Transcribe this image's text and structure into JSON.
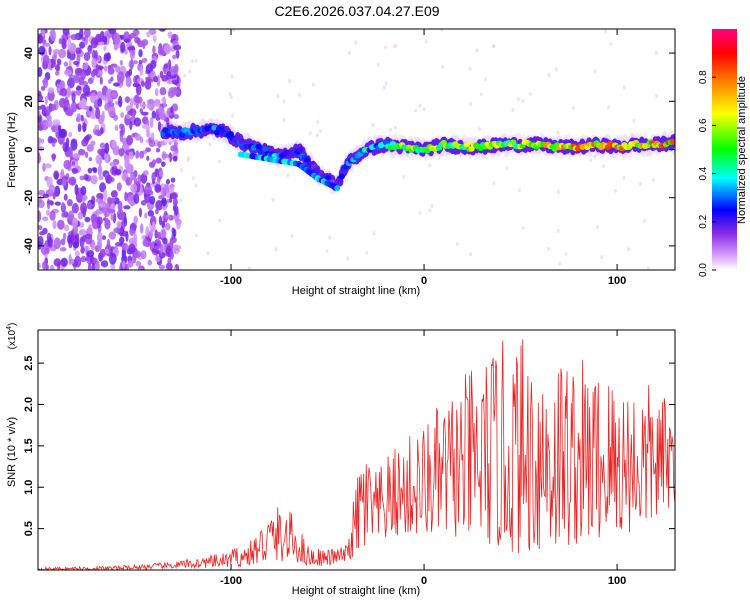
{
  "title": "C2E6.2026.037.04.27.E09",
  "chart_data": [
    {
      "type": "heatmap",
      "title": "C2E6.2026.037.04.27.E09",
      "xlabel": "Height of straight line (km)",
      "ylabel": "Frequency (Hz)",
      "xlim": [
        -200,
        130
      ],
      "ylim": [
        -50,
        50
      ],
      "xticks": [
        -100,
        0,
        100
      ],
      "yticks": [
        -40,
        -20,
        0,
        20,
        40
      ],
      "colorbar": {
        "label": "Normalized spectral amplitude",
        "range": [
          0,
          1
        ],
        "ticks": [
          0.0,
          0.2,
          0.4,
          0.6,
          0.8
        ],
        "colors": [
          "#ffffff",
          "#8a2be2",
          "#0000ff",
          "#00ffff",
          "#00ff00",
          "#ffff00",
          "#ff8000",
          "#ff0000",
          "#ff0080"
        ]
      },
      "noise_region_x": [
        -200,
        -135
      ],
      "ridge": [
        {
          "x": -135,
          "y": 7,
          "amp": 0.3
        },
        {
          "x": -125,
          "y": 7,
          "amp": 0.4
        },
        {
          "x": -115,
          "y": 8,
          "amp": 0.35
        },
        {
          "x": -105,
          "y": 8,
          "amp": 0.3
        },
        {
          "x": -95,
          "y": 3,
          "amp": 0.3
        },
        {
          "x": -85,
          "y": 0,
          "amp": 0.35
        },
        {
          "x": -75,
          "y": -3,
          "amp": 0.35
        },
        {
          "x": -65,
          "y": 0,
          "amp": 0.3
        },
        {
          "x": -55,
          "y": -10,
          "amp": 0.25
        },
        {
          "x": -45,
          "y": -15,
          "amp": 0.2
        },
        {
          "x": -40,
          "y": -6,
          "amp": 0.3
        },
        {
          "x": -30,
          "y": 0,
          "amp": 0.4
        },
        {
          "x": -20,
          "y": 2,
          "amp": 0.45
        },
        {
          "x": -10,
          "y": 1,
          "amp": 0.6
        },
        {
          "x": 0,
          "y": 0,
          "amp": 0.7
        },
        {
          "x": 10,
          "y": 2,
          "amp": 0.6
        },
        {
          "x": 20,
          "y": 1,
          "amp": 0.6
        },
        {
          "x": 30,
          "y": 1,
          "amp": 0.65
        },
        {
          "x": 40,
          "y": 2,
          "amp": 0.6
        },
        {
          "x": 50,
          "y": 2,
          "amp": 0.65
        },
        {
          "x": 60,
          "y": 2,
          "amp": 0.7
        },
        {
          "x": 70,
          "y": 1,
          "amp": 0.75
        },
        {
          "x": 80,
          "y": 1,
          "amp": 0.8
        },
        {
          "x": 90,
          "y": 2,
          "amp": 0.75
        },
        {
          "x": 100,
          "y": 1,
          "amp": 0.8
        },
        {
          "x": 110,
          "y": 2,
          "amp": 0.75
        },
        {
          "x": 120,
          "y": 2,
          "amp": 0.8
        },
        {
          "x": 130,
          "y": 3,
          "amp": 0.8
        }
      ]
    },
    {
      "type": "line",
      "xlabel": "Height of straight line (km)",
      "ylabel": "SNR (10 * v/v)",
      "y_multiplier_label": "(x10",
      "y_multiplier_exp": "4",
      "xlim": [
        -200,
        130
      ],
      "ylim": [
        0,
        2.9
      ],
      "xticks": [
        -100,
        0,
        100
      ],
      "yticks": [
        0.5,
        1.0,
        1.5,
        2.0,
        2.5
      ],
      "color": "#ee2222",
      "series": [
        {
          "name": "SNR",
          "envelope": [
            {
              "x": -200,
              "lo": 0.0,
              "hi": 0.03
            },
            {
              "x": -160,
              "lo": 0.0,
              "hi": 0.05
            },
            {
              "x": -130,
              "lo": 0.02,
              "hi": 0.1
            },
            {
              "x": -105,
              "lo": 0.03,
              "hi": 0.2
            },
            {
              "x": -90,
              "lo": 0.05,
              "hi": 0.35
            },
            {
              "x": -78,
              "lo": 0.1,
              "hi": 0.8
            },
            {
              "x": -68,
              "lo": 0.1,
              "hi": 0.7
            },
            {
              "x": -60,
              "lo": 0.05,
              "hi": 0.3
            },
            {
              "x": -50,
              "lo": 0.05,
              "hi": 0.25
            },
            {
              "x": -40,
              "lo": 0.1,
              "hi": 0.3
            },
            {
              "x": -32,
              "lo": 0.2,
              "hi": 1.6
            },
            {
              "x": -25,
              "lo": 0.3,
              "hi": 1.2
            },
            {
              "x": -15,
              "lo": 0.4,
              "hi": 1.5
            },
            {
              "x": 0,
              "lo": 0.4,
              "hi": 1.8
            },
            {
              "x": 15,
              "lo": 0.4,
              "hi": 2.2
            },
            {
              "x": 30,
              "lo": 0.3,
              "hi": 2.6
            },
            {
              "x": 45,
              "lo": 0.2,
              "hi": 2.85
            },
            {
              "x": 60,
              "lo": 0.2,
              "hi": 2.85
            },
            {
              "x": 80,
              "lo": 0.3,
              "hi": 2.6
            },
            {
              "x": 100,
              "lo": 0.4,
              "hi": 2.4
            },
            {
              "x": 115,
              "lo": 0.5,
              "hi": 2.3
            },
            {
              "x": 130,
              "lo": 0.8,
              "hi": 2.0
            }
          ]
        }
      ]
    }
  ]
}
